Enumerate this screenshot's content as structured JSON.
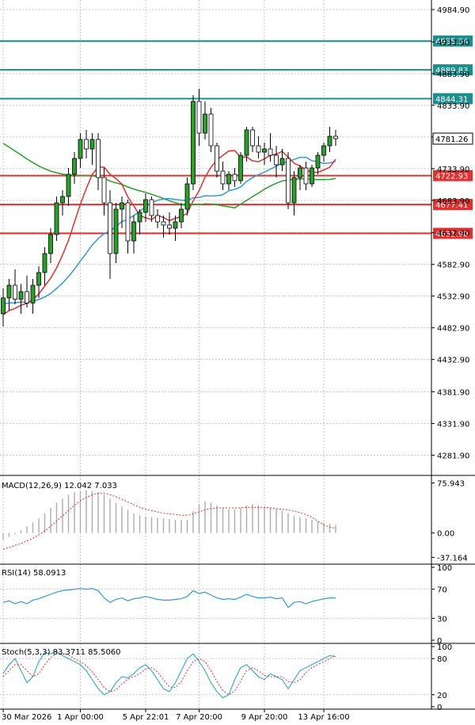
{
  "chart_data": {
    "type": "candlestick",
    "main": {
      "price_ticks": [
        "4984.90",
        "4933.90",
        "4883.90",
        "4833.90",
        "4783.90",
        "4733.90",
        "4683.90",
        "4632.90",
        "4582.90",
        "4532.90",
        "4482.90",
        "4432.90",
        "4381.90",
        "4331.90",
        "4281.90"
      ],
      "price_tick_values": [
        4984.9,
        4933.9,
        4883.9,
        4833.9,
        4783.9,
        4733.9,
        4683.9,
        4632.9,
        4582.9,
        4532.9,
        4482.9,
        4432.9,
        4381.9,
        4331.9,
        4281.9
      ],
      "ylim": [
        4250,
        5000
      ],
      "current_price": "4781.26",
      "horizontal_levels": [
        {
          "label": "4935.34",
          "value": 4935.34,
          "color": "#1b8f8f"
        },
        {
          "label": "4889.83",
          "value": 4889.83,
          "color": "#1b8f8f"
        },
        {
          "label": "4844.31",
          "value": 4844.31,
          "color": "#1b8f8f"
        },
        {
          "label": "4722.93",
          "value": 4722.93,
          "color": "#e03030"
        },
        {
          "label": "4677.41",
          "value": 4677.41,
          "color": "#e03030"
        },
        {
          "label": "4631.90",
          "value": 4631.9,
          "color": "#e03030"
        }
      ],
      "candles": [
        [
          4505,
          4545,
          4485,
          4530
        ],
        [
          4530,
          4560,
          4510,
          4550
        ],
        [
          4550,
          4575,
          4520,
          4528
        ],
        [
          4528,
          4552,
          4505,
          4540
        ],
        [
          4540,
          4565,
          4515,
          4522
        ],
        [
          4522,
          4560,
          4505,
          4550
        ],
        [
          4550,
          4580,
          4530,
          4570
        ],
        [
          4570,
          4610,
          4550,
          4600
        ],
        [
          4600,
          4640,
          4585,
          4630
        ],
        [
          4630,
          4690,
          4620,
          4680
        ],
        [
          4680,
          4700,
          4660,
          4690
        ],
        [
          4690,
          4735,
          4675,
          4725
        ],
        [
          4725,
          4760,
          4710,
          4750
        ],
        [
          4750,
          4790,
          4735,
          4780
        ],
        [
          4780,
          4795,
          4750,
          4765
        ],
        [
          4765,
          4790,
          4740,
          4780
        ],
        [
          4780,
          4790,
          4700,
          4720
        ],
        [
          4720,
          4735,
          4660,
          4680
        ],
        [
          4680,
          4700,
          4560,
          4600
        ],
        [
          4600,
          4680,
          4585,
          4670
        ],
        [
          4670,
          4690,
          4640,
          4680
        ],
        [
          4680,
          4685,
          4600,
          4620
        ],
        [
          4620,
          4660,
          4600,
          4650
        ],
        [
          4650,
          4670,
          4630,
          4665
        ],
        [
          4665,
          4695,
          4650,
          4685
        ],
        [
          4685,
          4690,
          4650,
          4660
        ],
        [
          4660,
          4670,
          4640,
          4650
        ],
        [
          4650,
          4660,
          4625,
          4645
        ],
        [
          4645,
          4665,
          4630,
          4640
        ],
        [
          4640,
          4660,
          4620,
          4650
        ],
        [
          4650,
          4680,
          4640,
          4670
        ],
        [
          4670,
          4720,
          4660,
          4710
        ],
        [
          4710,
          4850,
          4700,
          4840
        ],
        [
          4840,
          4860,
          4770,
          4790
        ],
        [
          4790,
          4840,
          4780,
          4820
        ],
        [
          4820,
          4830,
          4760,
          4770
        ],
        [
          4770,
          4775,
          4720,
          4730
        ],
        [
          4730,
          4745,
          4700,
          4710
        ],
        [
          4710,
          4730,
          4700,
          4725
        ],
        [
          4725,
          4735,
          4705,
          4715
        ],
        [
          4715,
          4760,
          4710,
          4755
        ],
        [
          4755,
          4800,
          4745,
          4795
        ],
        [
          4795,
          4800,
          4760,
          4770
        ],
        [
          4770,
          4785,
          4750,
          4760
        ],
        [
          4760,
          4775,
          4740,
          4765
        ],
        [
          4765,
          4790,
          4745,
          4755
        ],
        [
          4755,
          4770,
          4720,
          4740
        ],
        [
          4740,
          4765,
          4730,
          4750
        ],
        [
          4750,
          4760,
          4670,
          4680
        ],
        [
          4680,
          4730,
          4660,
          4720
        ],
        [
          4720,
          4740,
          4700,
          4735
        ],
        [
          4735,
          4745,
          4700,
          4710
        ],
        [
          4710,
          4740,
          4705,
          4735
        ],
        [
          4735,
          4760,
          4725,
          4755
        ],
        [
          4755,
          4775,
          4745,
          4770
        ],
        [
          4770,
          4800,
          4760,
          4785
        ],
        [
          4785,
          4795,
          4770,
          4781.26
        ]
      ],
      "ma_fast_color": "#e03030",
      "ma_mid_color": "#3399dd",
      "ma_slow_color": "#2a9d2a"
    },
    "x_labels": [
      "30 Mar 2026",
      "1 Apr 00:00",
      "5 Apr 22:01",
      "7 Apr 20:00",
      "9 Apr 20:00",
      "13 Apr 16:00"
    ],
    "x_label_bars": [
      0,
      13,
      24,
      33,
      44,
      54
    ],
    "macd": {
      "label": "MACD(12,26,9) 12.042 7.033",
      "ticks": [
        "75.943",
        "0.00",
        "-37.164"
      ],
      "tick_values": [
        75.943,
        0,
        -37.164
      ],
      "ylim": [
        -45,
        85
      ],
      "histogram": [
        -10,
        -6,
        -2,
        4,
        10,
        16,
        22,
        30,
        38,
        46,
        52,
        58,
        62,
        64,
        65,
        64,
        62,
        58,
        52,
        46,
        40,
        35,
        30,
        27,
        25,
        24,
        23,
        22,
        21,
        20,
        20,
        20,
        33,
        44,
        48,
        46,
        42,
        38,
        36,
        36,
        38,
        42,
        44,
        42,
        40,
        38,
        36,
        34,
        30,
        26,
        24,
        22,
        20,
        18,
        16,
        14,
        12.042
      ],
      "signal": [
        -25,
        -22,
        -19,
        -16,
        -12,
        -8,
        -3,
        3,
        10,
        18,
        26,
        34,
        42,
        49,
        54,
        58,
        60,
        60,
        58,
        55,
        51,
        47,
        43,
        39,
        36,
        34,
        32,
        30,
        29,
        28,
        27,
        27,
        29,
        32,
        35,
        37,
        38,
        38,
        38,
        38,
        38,
        39,
        39,
        39,
        39,
        38,
        37,
        36,
        35,
        33,
        31,
        28,
        24,
        18,
        12,
        9,
        7.033
      ]
    },
    "rsi": {
      "label": "RSI(14) 58.0913",
      "ticks": [
        "100",
        "70",
        "30",
        "0"
      ],
      "tick_values": [
        100,
        70,
        30,
        0
      ],
      "values": [
        52,
        54,
        50,
        53,
        50,
        55,
        57,
        60,
        63,
        66,
        68,
        69,
        70,
        71,
        70,
        71,
        68,
        58,
        52,
        56,
        58,
        54,
        57,
        58,
        60,
        58,
        56,
        55,
        55,
        56,
        57,
        60,
        68,
        64,
        66,
        62,
        58,
        56,
        57,
        56,
        59,
        63,
        60,
        58,
        58,
        59,
        57,
        58,
        45,
        52,
        53,
        50,
        53,
        55,
        57,
        58,
        58.0913
      ]
    },
    "stoch": {
      "label": "Stoch(5,3,3) 83.3711 85.5060",
      "ticks": [
        "100",
        "80",
        "20",
        "0"
      ],
      "tick_values": [
        100,
        80,
        20,
        0
      ],
      "k": [
        55,
        70,
        80,
        60,
        40,
        50,
        75,
        90,
        88,
        92,
        85,
        80,
        75,
        70,
        60,
        45,
        30,
        20,
        25,
        40,
        50,
        48,
        55,
        65,
        70,
        60,
        45,
        30,
        25,
        40,
        60,
        80,
        88,
        75,
        60,
        40,
        25,
        15,
        20,
        45,
        65,
        70,
        60,
        50,
        45,
        55,
        50,
        45,
        30,
        45,
        60,
        65,
        70,
        75,
        80,
        85,
        83.3711
      ],
      "d": [
        50,
        60,
        70,
        70,
        60,
        50,
        55,
        70,
        82,
        88,
        88,
        86,
        80,
        75,
        68,
        58,
        45,
        32,
        25,
        28,
        38,
        46,
        50,
        55,
        63,
        65,
        58,
        45,
        33,
        32,
        42,
        60,
        75,
        80,
        75,
        60,
        42,
        27,
        20,
        26,
        43,
        60,
        65,
        60,
        52,
        50,
        50,
        50,
        42,
        40,
        45,
        57,
        65,
        70,
        75,
        80,
        85.506
      ]
    }
  }
}
